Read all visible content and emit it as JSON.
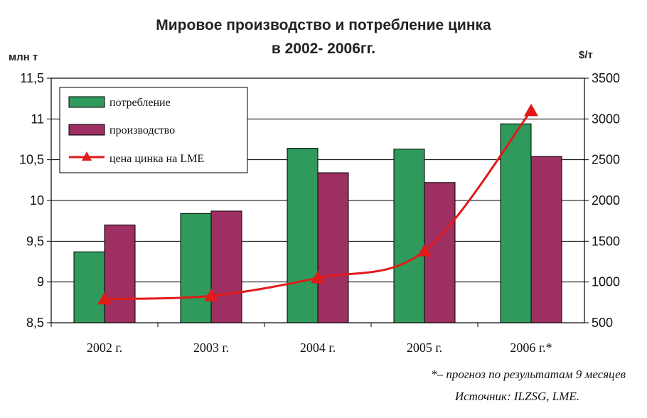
{
  "chart_data": {
    "type": "bar",
    "title_line1": "Мировое производство и потребление цинка",
    "title_line2": "в 2002- 2006гг.",
    "ylabel_left": "млн т",
    "ylabel_right": "$/т",
    "categories": [
      "2002 г.",
      "2003 г.",
      "2004 г.",
      "2005 г.",
      "2006 г.*"
    ],
    "ylim": [
      8.5,
      11.5
    ],
    "yticks": [
      "8,5",
      "9",
      "9,5",
      "10",
      "10,5",
      "11",
      "11,5"
    ],
    "ylim_right": [
      500,
      3500
    ],
    "yticks_right": [
      "500",
      "1000",
      "1500",
      "2000",
      "2500",
      "3000",
      "3500"
    ],
    "grid": true,
    "legend_position": "top-left",
    "series": [
      {
        "name": "потребление",
        "type": "bar",
        "axis": "left",
        "color": "#2e9a5c",
        "values": [
          9.37,
          9.84,
          10.64,
          10.63,
          10.94
        ]
      },
      {
        "name": "производство",
        "type": "bar",
        "axis": "left",
        "color": "#9e2f62",
        "values": [
          9.7,
          9.87,
          10.34,
          10.22,
          10.54
        ]
      },
      {
        "name": "цена цинка на LME",
        "type": "line",
        "axis": "right",
        "color": "#e21a1a",
        "marker": "triangle",
        "values": [
          790,
          830,
          1050,
          1380,
          3100
        ]
      }
    ],
    "notes": [
      "*– прогноз по результатам 9 месяцев",
      "Источник: ILZSG, LME."
    ]
  }
}
